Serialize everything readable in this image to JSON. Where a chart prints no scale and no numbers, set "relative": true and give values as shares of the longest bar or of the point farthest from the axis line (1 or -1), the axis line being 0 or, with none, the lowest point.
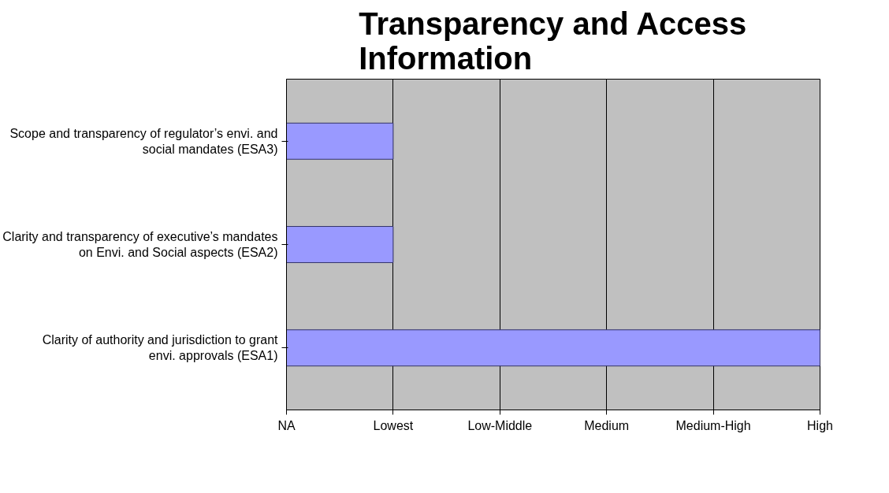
{
  "chart_data": {
    "type": "bar",
    "orientation": "horizontal",
    "title": "Transparency and Access Information",
    "categories": [
      "Scope and transparency of regulator’s envi. and social mandates (ESA3)",
      "Clarity and transparency of executive’s mandates on Envi. and Social aspects (ESA2)",
      "Clarity of authority and jurisdiction to grant envi. approvals (ESA1)"
    ],
    "values": [
      0.2,
      0.2,
      1
    ],
    "color": "#9999ff",
    "relative": true,
    "annotations": [
      "NA",
      "Lowest",
      "Low-Middle",
      "Medium",
      "Medium-High",
      "High"
    ],
    "grid": "x"
  }
}
